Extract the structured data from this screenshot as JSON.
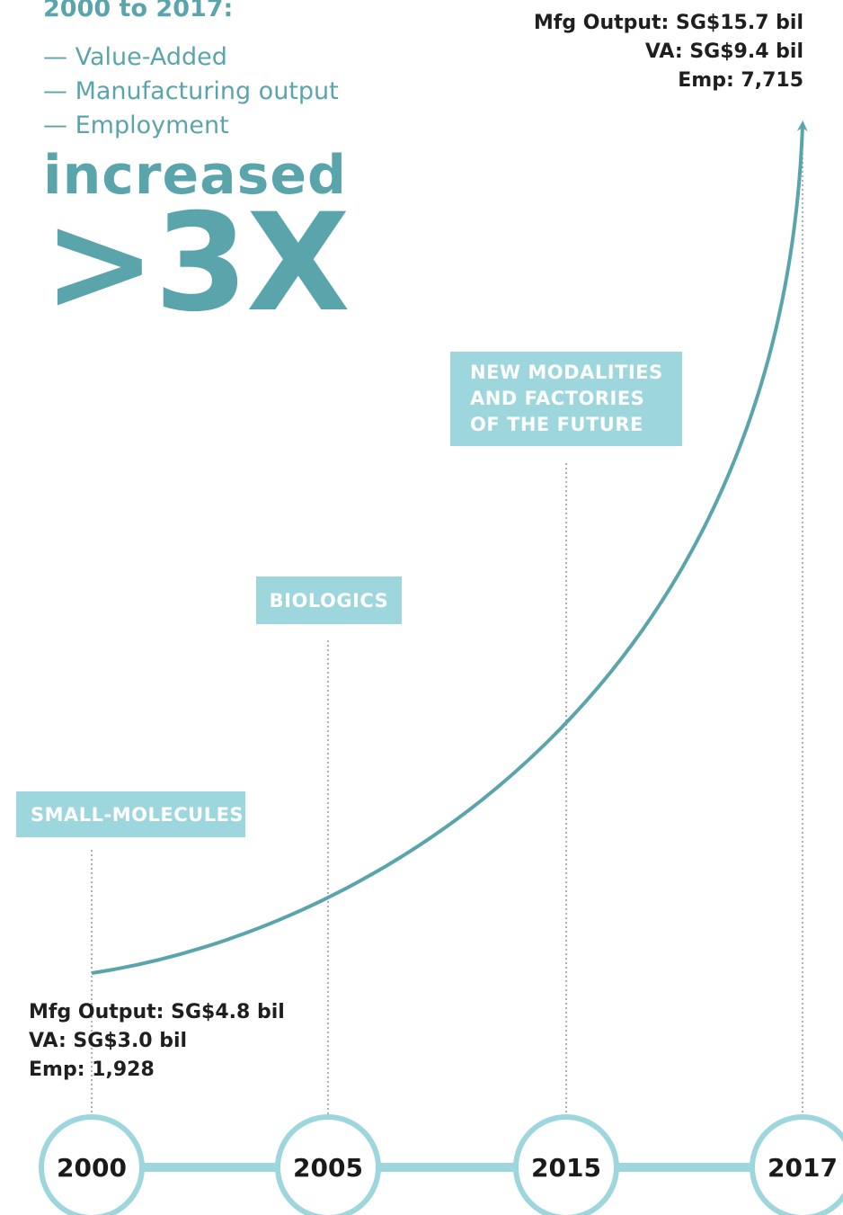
{
  "heading": "2000 to 2017:",
  "metrics": [
    "— Value-Added",
    "— Manufacturing output",
    "— Employment"
  ],
  "headline": "increased",
  "multiple": ">3X",
  "colors": {
    "accent": "#5aa5ab",
    "box": "#9ed6dd",
    "timeline": "#9ed6dd",
    "text": "#1f1f1f"
  },
  "eras": [
    {
      "label": "SMALL-MOLECULES"
    },
    {
      "label": "BIOLOGICS"
    },
    {
      "label": "NEW MODALITIES AND FACTORIES OF THE FUTURE"
    }
  ],
  "start_stats": {
    "output": "Mfg Output: SG$4.8 bil",
    "va": "VA: SG$3.0 bil",
    "emp": "Emp: 1,928"
  },
  "end_stats": {
    "output": "Mfg Output: SG$15.7 bil",
    "va": "VA: SG$9.4 bil",
    "emp": "Emp: 7,715"
  },
  "chart_data": {
    "type": "line",
    "categories": [
      "2000",
      "2005",
      "2015",
      "2017"
    ],
    "series": [
      {
        "values": [
          4.8,
          null,
          null,
          15.7
        ]
      }
    ],
    "annotations": [
      "SMALL-MOLECULES",
      "BIOLOGICS",
      "NEW MODALITIES AND FACTORIES OF THE FUTURE"
    ],
    "grid": false,
    "arrow_end": true
  }
}
